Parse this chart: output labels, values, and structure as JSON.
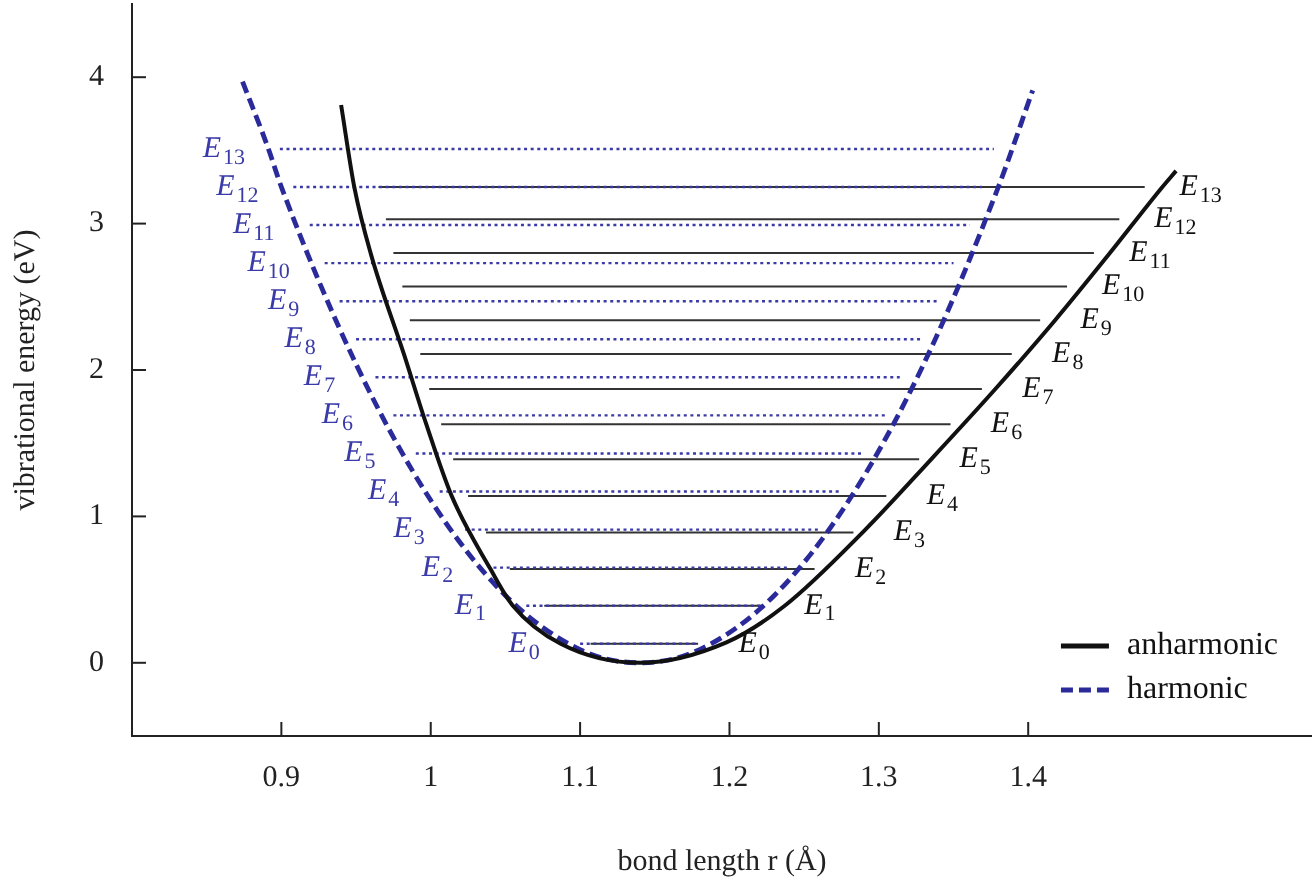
{
  "chart_data": {
    "type": "line",
    "xlabel": "bond length r (Å)",
    "ylabel": "vibrational energy (eV)",
    "xlim": [
      0.8,
      1.59
    ],
    "ylim": [
      -0.5,
      4.5
    ],
    "xticks": [
      0.9,
      1,
      1.1,
      1.2,
      1.3,
      1.4
    ],
    "yticks": [
      0,
      1,
      2,
      3,
      4
    ],
    "grid": false,
    "legend": "bottom right",
    "marker": "none",
    "series": [
      {
        "name": "anharmonic",
        "color": "#111111",
        "line_style": "solid",
        "x": [
          0.94,
          0.949,
          0.96,
          0.982,
          0.997,
          1.014,
          1.04,
          1.055,
          1.087,
          1.14,
          1.198,
          1.237,
          1.29,
          1.335,
          1.378,
          1.418,
          1.454,
          1.489,
          1.499
        ],
        "values": [
          3.81,
          3.24,
          2.79,
          2.11,
          1.63,
          1.14,
          0.64,
          0.39,
          0.13,
          0,
          0.14,
          0.39,
          0.9,
          1.39,
          1.87,
          2.34,
          2.79,
          3.24,
          3.36
        ]
      },
      {
        "name": "harmonic",
        "color": "#2a2a9a",
        "line_style": "dashed",
        "x": [
          0.874,
          0.891,
          0.9,
          0.95,
          1.0,
          1.05,
          1.1,
          1.14,
          1.18,
          1.23,
          1.28,
          1.33,
          1.38,
          1.403
        ],
        "values": [
          3.97,
          3.52,
          3.25,
          2.04,
          1.11,
          0.46,
          0.09,
          0,
          0.09,
          0.46,
          1.11,
          2.04,
          3.25,
          3.91
        ]
      },
      {
        "color": "#3a3aa8",
        "line_style": "dotted",
        "x": [
          1.1,
          1.178
        ],
        "values": [
          0.13,
          0.13
        ]
      },
      {
        "color": "#3a3aa8",
        "line_style": "dotted",
        "x": [
          1.064,
          1.222
        ],
        "values": [
          0.39,
          0.39
        ]
      },
      {
        "color": "#3a3aa8",
        "line_style": "dotted",
        "x": [
          1.042,
          1.24
        ],
        "values": [
          0.65,
          0.65
        ]
      },
      {
        "color": "#3a3aa8",
        "line_style": "dotted",
        "x": [
          1.023,
          1.26
        ],
        "values": [
          0.91,
          0.91
        ]
      },
      {
        "color": "#3a3aa8",
        "line_style": "dotted",
        "x": [
          1.006,
          1.275
        ],
        "values": [
          1.17,
          1.17
        ]
      },
      {
        "color": "#3a3aa8",
        "line_style": "dotted",
        "x": [
          0.99,
          1.289
        ],
        "values": [
          1.43,
          1.43
        ]
      },
      {
        "color": "#3a3aa8",
        "line_style": "dotted",
        "x": [
          0.975,
          1.305
        ],
        "values": [
          1.69,
          1.69
        ]
      },
      {
        "color": "#3a3aa8",
        "line_style": "dotted",
        "x": [
          0.963,
          1.314
        ],
        "values": [
          1.95,
          1.95
        ]
      },
      {
        "color": "#3a3aa8",
        "line_style": "dotted",
        "x": [
          0.95,
          1.329
        ],
        "values": [
          2.21,
          2.21
        ]
      },
      {
        "color": "#3a3aa8",
        "line_style": "dotted",
        "x": [
          0.939,
          1.34
        ],
        "values": [
          2.47,
          2.47
        ]
      },
      {
        "color": "#3a3aa8",
        "line_style": "dotted",
        "x": [
          0.929,
          1.35
        ],
        "values": [
          2.73,
          2.73
        ]
      },
      {
        "color": "#3a3aa8",
        "line_style": "dotted",
        "x": [
          0.919,
          1.361
        ],
        "values": [
          2.99,
          2.99
        ]
      },
      {
        "color": "#3a3aa8",
        "line_style": "dotted",
        "x": [
          0.908,
          1.369
        ],
        "values": [
          3.25,
          3.25
        ]
      },
      {
        "color": "#3a3aa8",
        "line_style": "dotted",
        "x": [
          0.899,
          1.377
        ],
        "values": [
          3.51,
          3.51
        ]
      },
      {
        "color": "#333333",
        "line_style": "solid",
        "x": [
          1.107,
          1.179
        ],
        "values": [
          0.13,
          0.13
        ]
      },
      {
        "color": "#333333",
        "line_style": "solid",
        "x": [
          1.076,
          1.223
        ],
        "values": [
          0.39,
          0.39
        ]
      },
      {
        "color": "#333333",
        "line_style": "solid",
        "x": [
          1.053,
          1.257
        ],
        "values": [
          0.64,
          0.64
        ]
      },
      {
        "color": "#333333",
        "line_style": "solid",
        "x": [
          1.037,
          1.283
        ],
        "values": [
          0.89,
          0.89
        ]
      },
      {
        "color": "#333333",
        "line_style": "solid",
        "x": [
          1.025,
          1.305
        ],
        "values": [
          1.14,
          1.14
        ]
      },
      {
        "color": "#333333",
        "line_style": "solid",
        "x": [
          1.015,
          1.327
        ],
        "values": [
          1.39,
          1.39
        ]
      },
      {
        "color": "#333333",
        "line_style": "solid",
        "x": [
          1.007,
          1.348
        ],
        "values": [
          1.63,
          1.63
        ]
      },
      {
        "color": "#333333",
        "line_style": "solid",
        "x": [
          0.999,
          1.369
        ],
        "values": [
          1.87,
          1.87
        ]
      },
      {
        "color": "#333333",
        "line_style": "solid",
        "x": [
          0.993,
          1.389
        ],
        "values": [
          2.11,
          2.11
        ]
      },
      {
        "color": "#333333",
        "line_style": "solid",
        "x": [
          0.986,
          1.408
        ],
        "values": [
          2.34,
          2.34
        ]
      },
      {
        "color": "#333333",
        "line_style": "solid",
        "x": [
          0.981,
          1.426
        ],
        "values": [
          2.57,
          2.57
        ]
      },
      {
        "color": "#333333",
        "line_style": "solid",
        "x": [
          0.975,
          1.444
        ],
        "values": [
          2.8,
          2.8
        ]
      },
      {
        "color": "#333333",
        "line_style": "solid",
        "x": [
          0.97,
          1.461
        ],
        "values": [
          3.03,
          3.03
        ]
      },
      {
        "color": "#333333",
        "line_style": "solid",
        "x": [
          0.965,
          1.478
        ],
        "values": [
          3.25,
          3.25
        ]
      }
    ],
    "annotations": [
      {
        "text": "E$_{0}$",
        "x": 1.1,
        "y": 0.13
      },
      {
        "text": "E$_{1}$",
        "x": 1.064,
        "y": 0.39
      },
      {
        "text": "E$_{2}$",
        "x": 1.042,
        "y": 0.65
      },
      {
        "text": "E$_{3}$",
        "x": 1.023,
        "y": 0.91
      },
      {
        "text": "E$_{4}$",
        "x": 1.006,
        "y": 1.17
      },
      {
        "text": "E$_{5}$",
        "x": 0.99,
        "y": 1.43
      },
      {
        "text": "E$_{6}$",
        "x": 0.975,
        "y": 1.69
      },
      {
        "text": "E$_{7}$",
        "x": 0.963,
        "y": 1.95
      },
      {
        "text": "E$_{8}$",
        "x": 0.95,
        "y": 2.21
      },
      {
        "text": "E$_{9}$",
        "x": 0.939,
        "y": 2.47
      },
      {
        "text": "E$_{10}$",
        "x": 0.929,
        "y": 2.73
      },
      {
        "text": "E$_{11}$",
        "x": 0.919,
        "y": 2.99
      },
      {
        "text": "E$_{12}$",
        "x": 0.908,
        "y": 3.25
      },
      {
        "text": "E$_{13}$",
        "x": 0.899,
        "y": 3.51
      },
      {
        "text": "E$_{0}$",
        "x": 1.179,
        "y": 0.13
      },
      {
        "text": "E$_{1}$",
        "x": 1.223,
        "y": 0.39
      },
      {
        "text": "E$_{2}$",
        "x": 1.257,
        "y": 0.64
      },
      {
        "text": "E$_{3}$",
        "x": 1.283,
        "y": 0.89
      },
      {
        "text": "E$_{4}$",
        "x": 1.305,
        "y": 1.14
      },
      {
        "text": "E$_{5}$",
        "x": 1.327,
        "y": 1.39
      },
      {
        "text": "E$_{6}$",
        "x": 1.348,
        "y": 1.63
      },
      {
        "text": "E$_{7}$",
        "x": 1.369,
        "y": 1.87
      },
      {
        "text": "E$_{8}$",
        "x": 1.389,
        "y": 2.11
      },
      {
        "text": "E$_{9}$",
        "x": 1.408,
        "y": 2.34
      },
      {
        "text": "E$_{10}$",
        "x": 1.426,
        "y": 2.57
      },
      {
        "text": "E$_{11}$",
        "x": 1.444,
        "y": 2.8
      },
      {
        "text": "E$_{12}$",
        "x": 1.461,
        "y": 3.03
      },
      {
        "text": "E$_{13}$",
        "x": 1.478,
        "y": 3.25
      }
    ]
  }
}
